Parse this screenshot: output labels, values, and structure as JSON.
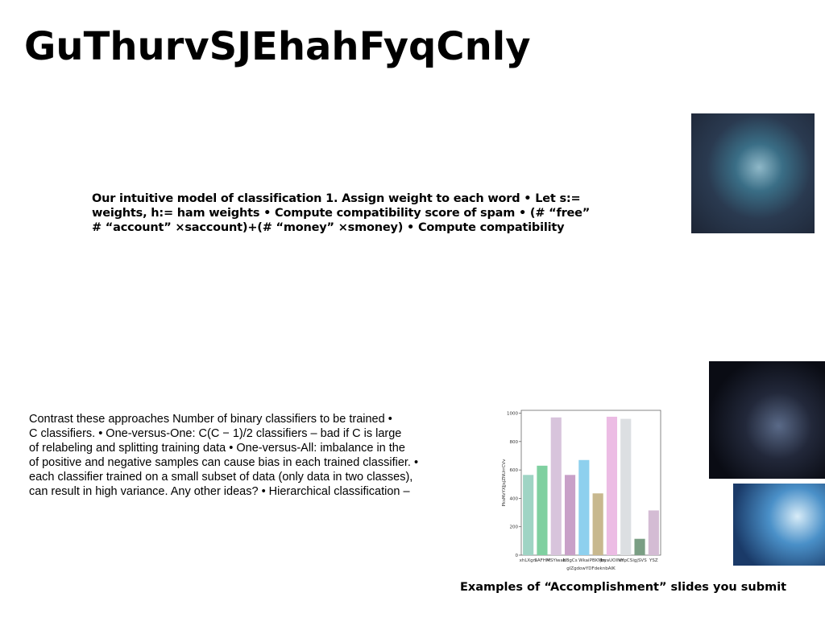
{
  "slide": {
    "title": "GuThurvSJEhahFyqCnly",
    "body_1": [
      "Our intuitive model of classification 1. Assign weight to each word • Let s:=",
      "weights, h:= ham weights • Compute compatibility score of spam • (# “free”",
      "# “account” ×saccount)+(# “money” ×smoney) • Compute compatibility"
    ],
    "body_2": [
      "Contrast these approaches Number of binary classifiers to be trained •",
      "C classifiers. • One-versus-One: C(C − 1)/2 classifiers – bad if C is large",
      "of relabeling and splitting training data • One-versus-All: imbalance in the",
      "of positive and negative samples can cause bias in each trained classifier. •",
      "each classifier trained on a small subset of data (only data in two classes),",
      "can result in high variance. Any other ideas? • Hierarchical classification –"
    ],
    "caption": "Examples of “Accomplishment” slides you submit"
  },
  "chart_data": {
    "type": "bar",
    "y_label": "PksMzYXJjsjZNUrrCVv",
    "x_label": "glZgdowYDFdeknbAIK",
    "categories": [
      "xhLXgni",
      "SAFHM",
      "MSYiwab",
      "NBgCs",
      "Wkai",
      "PBKMm",
      "jbyaUOINH",
      "sYpCS",
      "igjSVS",
      "YSZ"
    ],
    "values": [
      565,
      630,
      970,
      565,
      670,
      435,
      975,
      960,
      115,
      315
    ],
    "colors": [
      "#9fd4c4",
      "#7fd0a0",
      "#d8c4dc",
      "#c8a0c8",
      "#8ed0ee",
      "#c8b88e",
      "#ecbce4",
      "#dcdfe2",
      "#7a9e84",
      "#d4bcd4"
    ],
    "ylim": [
      0,
      1020
    ],
    "yticks": [
      0,
      200,
      400,
      600,
      800,
      1000
    ]
  }
}
